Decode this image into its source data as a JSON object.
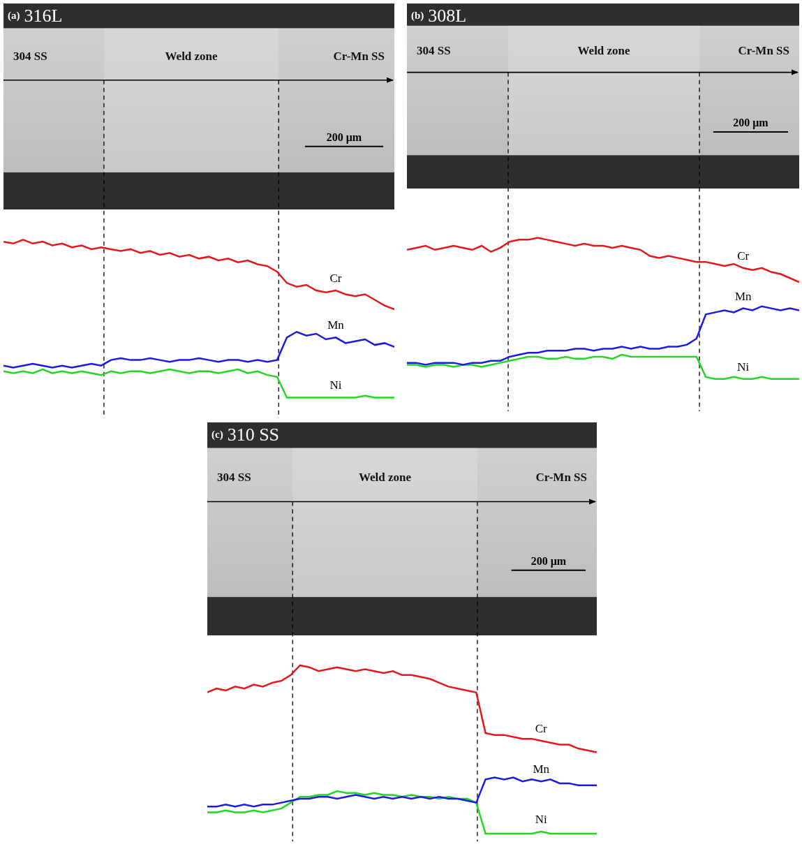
{
  "chart_data": [
    {
      "type": "line",
      "panel": "(a)",
      "title": "316L",
      "annotations": [
        "304 SS",
        "Weld zone",
        "Cr-Mn SS"
      ],
      "scale_bar": {
        "value": 200,
        "label": "200 μm"
      },
      "boundaries": [
        257,
        704
      ],
      "xlim": [
        0,
        1000
      ],
      "ylim": [
        0,
        100
      ],
      "tick_labels": false,
      "grid": false,
      "legend": "none",
      "x": [
        0,
        25,
        50,
        75,
        100,
        125,
        150,
        175,
        200,
        225,
        250,
        275,
        300,
        325,
        350,
        375,
        400,
        425,
        450,
        475,
        500,
        525,
        550,
        575,
        600,
        625,
        650,
        675,
        700,
        725,
        750,
        775,
        800,
        825,
        850,
        875,
        900,
        925,
        950,
        975,
        1000
      ],
      "series": [
        {
          "name": "Cr",
          "color": "#e8161b",
          "values": [
            94,
            93,
            95,
            93,
            94,
            92,
            93,
            91,
            92,
            90,
            91,
            90,
            89,
            90,
            88,
            89,
            87,
            88,
            86,
            87,
            85,
            86,
            84,
            85,
            83,
            84,
            82,
            81,
            78,
            72,
            70,
            71,
            68,
            67,
            68,
            66,
            65,
            66,
            63,
            60,
            58
          ]
        },
        {
          "name": "Mn",
          "color": "#1a1ae6",
          "values": [
            28,
            27,
            28,
            29,
            28,
            27,
            28,
            27,
            28,
            29,
            28,
            31,
            32,
            31,
            31,
            32,
            31,
            30,
            31,
            31,
            32,
            31,
            30,
            31,
            31,
            30,
            31,
            30,
            31,
            43,
            46,
            44,
            45,
            42,
            43,
            40,
            41,
            42,
            39,
            40,
            38
          ]
        },
        {
          "name": "Ni",
          "color": "#22d622",
          "values": [
            25,
            24,
            25,
            24,
            26,
            24,
            25,
            24,
            25,
            24,
            23,
            25,
            24,
            25,
            25,
            24,
            25,
            26,
            25,
            24,
            25,
            25,
            24,
            25,
            26,
            24,
            25,
            23,
            22,
            11,
            11,
            11,
            11,
            11,
            11,
            11,
            11,
            12,
            11,
            11,
            11
          ]
        }
      ]
    },
    {
      "type": "line",
      "panel": "(b)",
      "title": "308L",
      "annotations": [
        "304 SS",
        "Weld zone",
        "Cr-Mn SS"
      ],
      "scale_bar": {
        "value": 200,
        "label": "200 μm"
      },
      "boundaries": [
        271,
        783
      ],
      "xlim": [
        0,
        1050
      ],
      "ylim": [
        0,
        100
      ],
      "tick_labels": false,
      "grid": false,
      "legend": "none",
      "x": [
        0,
        25,
        50,
        75,
        100,
        125,
        150,
        175,
        200,
        225,
        250,
        275,
        300,
        325,
        350,
        375,
        400,
        425,
        450,
        475,
        500,
        525,
        550,
        575,
        600,
        625,
        650,
        675,
        700,
        725,
        750,
        775,
        800,
        825,
        850,
        875,
        900,
        925,
        950,
        975,
        1000,
        1025,
        1050
      ],
      "series": [
        {
          "name": "Cr",
          "color": "#e8161b",
          "values": [
            80,
            81,
            82,
            80,
            81,
            82,
            81,
            80,
            82,
            79,
            81,
            84,
            85,
            85,
            86,
            85,
            84,
            83,
            82,
            83,
            82,
            82,
            81,
            82,
            81,
            80,
            77,
            76,
            77,
            76,
            75,
            74,
            74,
            73,
            72,
            73,
            71,
            70,
            71,
            69,
            68,
            66,
            64
          ]
        },
        {
          "name": "Mn",
          "color": "#1a1ae6",
          "values": [
            24,
            24,
            23,
            24,
            24,
            24,
            23,
            24,
            24,
            25,
            25,
            27,
            28,
            29,
            29,
            30,
            30,
            30,
            31,
            31,
            30,
            31,
            31,
            32,
            31,
            32,
            31,
            31,
            32,
            32,
            33,
            36,
            48,
            49,
            50,
            49,
            51,
            50,
            52,
            51,
            50,
            51,
            50
          ]
        },
        {
          "name": "Ni",
          "color": "#22d622",
          "values": [
            23,
            23,
            22,
            23,
            23,
            22,
            23,
            23,
            22,
            23,
            24,
            25,
            26,
            27,
            27,
            26,
            26,
            27,
            26,
            26,
            27,
            27,
            26,
            28,
            27,
            27,
            27,
            27,
            27,
            27,
            27,
            27,
            17,
            16,
            16,
            17,
            16,
            16,
            17,
            16,
            16,
            16,
            16
          ]
        }
      ]
    },
    {
      "type": "line",
      "panel": "(c)",
      "title": "310 SS",
      "annotations": [
        "304 SS",
        "Weld zone",
        "Cr-Mn SS"
      ],
      "scale_bar": {
        "value": 200,
        "label": "200 μm"
      },
      "boundaries": [
        230,
        728
      ],
      "xlim": [
        0,
        1050
      ],
      "ylim": [
        0,
        100
      ],
      "tick_labels": false,
      "grid": false,
      "legend": "none",
      "x": [
        0,
        25,
        50,
        75,
        100,
        125,
        150,
        175,
        200,
        225,
        250,
        275,
        300,
        325,
        350,
        375,
        400,
        425,
        450,
        475,
        500,
        525,
        550,
        575,
        600,
        625,
        650,
        675,
        700,
        725,
        750,
        775,
        800,
        825,
        850,
        875,
        900,
        925,
        950,
        975,
        1000,
        1025,
        1050
      ],
      "series": [
        {
          "name": "Cr",
          "color": "#e8161b",
          "values": [
            77,
            79,
            78,
            80,
            79,
            81,
            80,
            82,
            83,
            86,
            91,
            90,
            88,
            89,
            90,
            89,
            88,
            89,
            88,
            87,
            88,
            86,
            86,
            85,
            84,
            82,
            80,
            79,
            78,
            77,
            56,
            55,
            55,
            54,
            53,
            53,
            52,
            51,
            50,
            50,
            48,
            47,
            46
          ]
        },
        {
          "name": "Mn",
          "color": "#1a1ae6",
          "values": [
            18,
            18,
            19,
            18,
            19,
            18,
            19,
            19,
            20,
            21,
            22,
            22,
            23,
            23,
            22,
            23,
            24,
            23,
            22,
            23,
            22,
            23,
            22,
            23,
            22,
            23,
            22,
            22,
            21,
            20,
            32,
            33,
            32,
            33,
            31,
            32,
            31,
            32,
            30,
            30,
            29,
            29,
            29
          ]
        },
        {
          "name": "Ni",
          "color": "#22d622",
          "values": [
            15,
            15,
            16,
            15,
            15,
            16,
            15,
            16,
            17,
            20,
            23,
            23,
            24,
            24,
            26,
            25,
            25,
            24,
            25,
            24,
            24,
            23,
            24,
            23,
            23,
            22,
            23,
            22,
            22,
            20,
            4,
            4,
            4,
            4,
            4,
            4,
            5,
            4,
            4,
            4,
            4,
            4,
            4
          ]
        }
      ]
    }
  ]
}
